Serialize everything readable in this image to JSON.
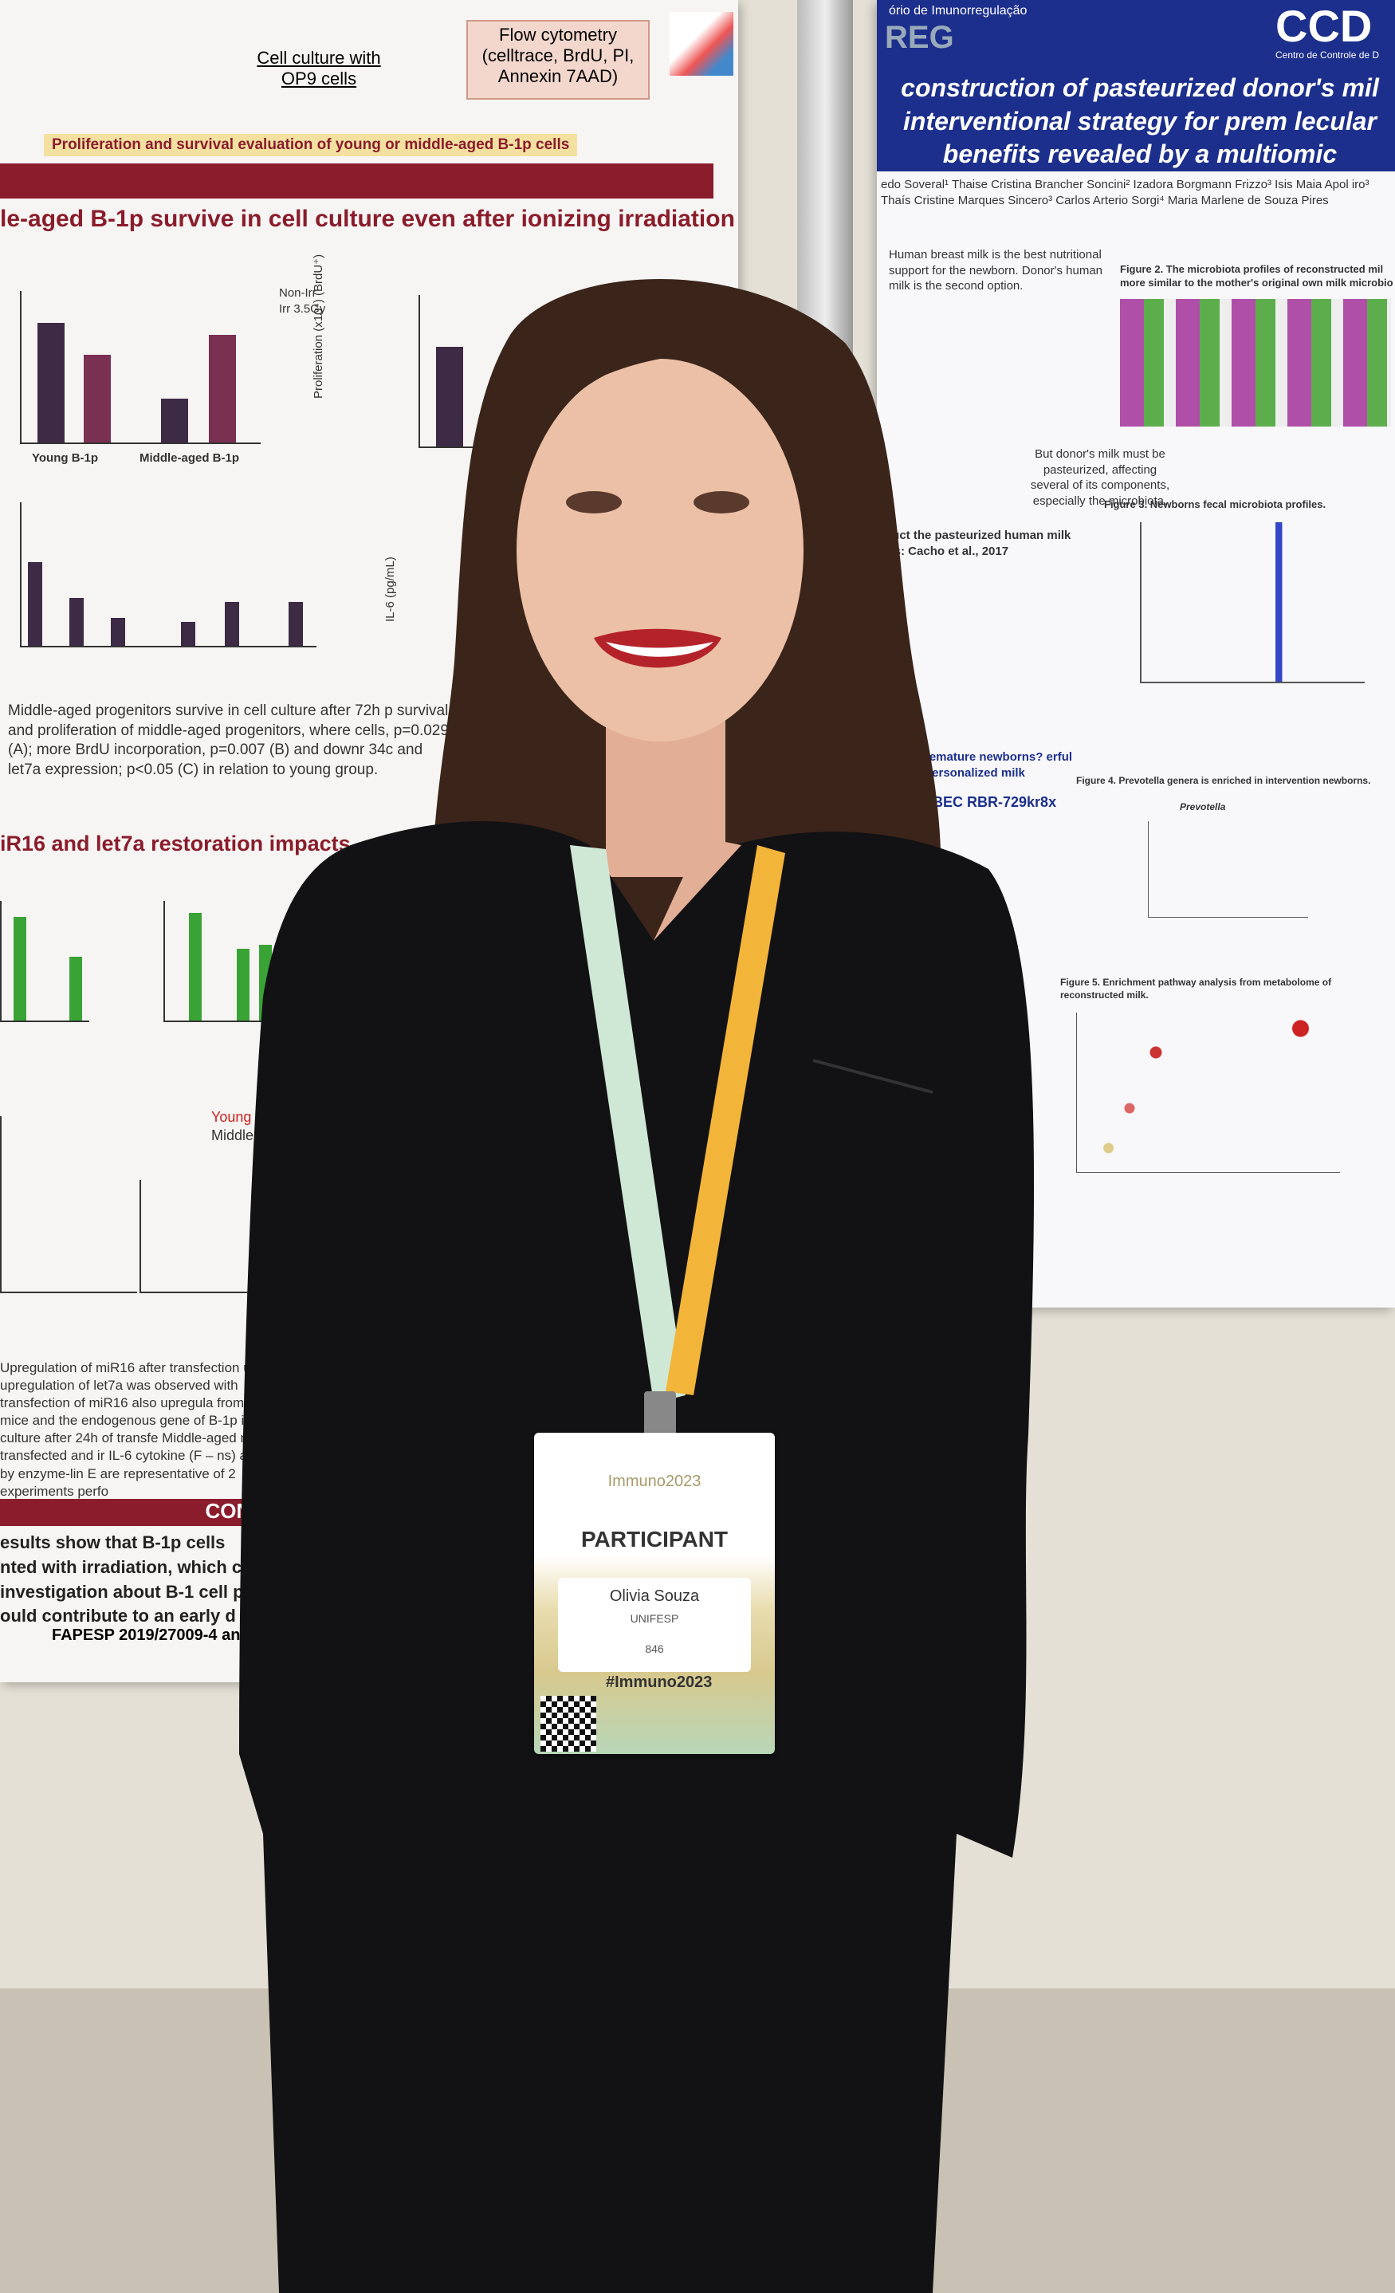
{
  "left_poster": {
    "method_label": "Cell culture with OP9 cells",
    "flow_label": "Flow cytometry (celltrace, BrdU, PI, Annexin 7AAD)",
    "section_band": "Proliferation and survival evaluation of young or middle-aged B-1p cells",
    "heading": "le-aged B-1p survive in cell culture even after ionizing irradiation",
    "legend_a": "Non-Irr",
    "legend_b": "Irr 3.5Gy",
    "group_a": "Young B-1p",
    "group_b": "Middle-aged B-1p",
    "y_axis_b": "Proliferation (x10⁴) (BrdU⁺)",
    "y_axis_d": "IL-6 (pg/mL)",
    "caption": "Middle-aged progenitors survive in cell culture after 72h p survival and proliferation of middle-aged progenitors, where cells, p=0.029 (A); more BrdU incorporation, p=0.007 (B) and downr 34c and let7a expression; p<0.05 (C) in relation to young group.",
    "heading2": "iR16 and let7a restoration impacts",
    "legend_c": "Young",
    "legend_d": "Middle-aged",
    "caption2": "Upregulation of miR16 after transfection ut no upregulation of let7a was observed with transfection of miR16 also upregula from young mice and the endogenous gene of B-1p in cell culture after 24h of transfe Middle-aged miR-16 transfected and ir IL-6 cytokine (F – ns) as seen by enzyme-lin E are representative of 2 experiments perfo",
    "conclusion_band": "CONC",
    "conclusion": "esults show that B-1p cells nted with irradiation, which co investigation about B-1 cell p ould contribute to an early d",
    "funding": "FAPESP 2019/27009-4 and"
  },
  "right_poster": {
    "lab": "ório de Imunorregulação",
    "acronym": "REG",
    "logo": "CCD",
    "logo_sub": "Centro de Controle de D",
    "title": "construction of pasteurized donor's mil interventional strategy for prem lecular benefits revealed by a multiomic",
    "authors": "edo Soveral¹ Thaise Cristina Brancher Soncini² Izadora Borgmann Frizzo³ Isis Maia Apol iro³ Thaís Cristine Marques Sincero³ Carlos Arterio Sorgi⁴ Maria Marlene de Souza Pires",
    "intro": "Human breast milk is the best nutritional support for the newborn. Donor's human milk is the second option.",
    "intro2": "But donor's milk must be pasteurized, affecting several of its components, especially the microbiota.",
    "fig2": "Figure 2. The microbiota profiles of reconstructed mil more similar to the mother's original own milk microbio",
    "fig3": "Figure 3. Newborns fecal microbiota profiles.",
    "method": "struct the pasteurized human milk ests: Cacho et al., 2017",
    "question": "remature newborns? erful personalized milk",
    "registry": "eBEC RBR-729kr8x",
    "fig4": "Figure 4. Prevotella genera is enriched in intervention newborns.",
    "fig4_title": "Prevotella",
    "fig5": "Figure 5. Enrichment pathway analysis from metabolome of reconstructed milk."
  },
  "badge": {
    "event": "Immuno2023",
    "role": "PARTICIPANT",
    "name": "Olivia Souza",
    "institution": "UNIFESP",
    "number": "846",
    "hashtag": "#Immuno2023"
  }
}
